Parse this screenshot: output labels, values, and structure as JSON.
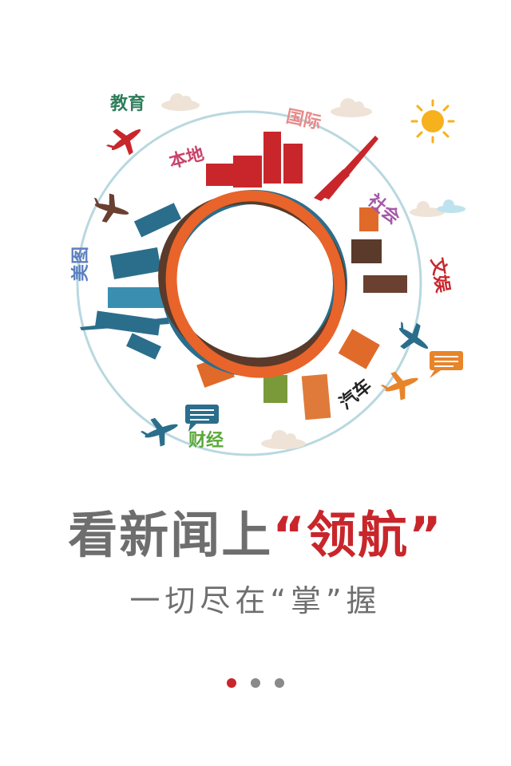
{
  "categories": [
    {
      "label": "教育",
      "color": "#2e7d5b"
    },
    {
      "label": "国际",
      "color": "#e88a8a"
    },
    {
      "label": "本地",
      "color": "#c8446a"
    },
    {
      "label": "社会",
      "color": "#a558a8"
    },
    {
      "label": "文娱",
      "color": "#c8262b"
    },
    {
      "label": "美图",
      "color": "#5b7fc0"
    },
    {
      "label": "财经",
      "color": "#5aa83a"
    },
    {
      "label": "汽车",
      "color": "#222222"
    }
  ],
  "headline": {
    "main": "看新闻上",
    "accent": "“领航”"
  },
  "subline": "一切尽在“掌”握",
  "pager": {
    "count": 3,
    "active_index": 0,
    "active_color": "#c8262b",
    "inactive_color": "#8a8a8a"
  },
  "icons": {
    "sun": "sun-icon",
    "cloud": "cloud-icon",
    "plane": "airplane-icon",
    "chat": "chat-bubble-icon"
  }
}
